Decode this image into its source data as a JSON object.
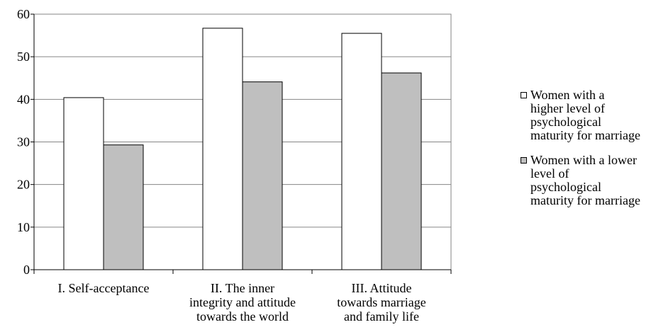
{
  "colors": {
    "series_0": "#ffffff",
    "series_1": "#bfbfbf",
    "axis": "#000000",
    "grid": "#868686"
  },
  "chart_data": {
    "type": "bar",
    "title": "",
    "xlabel": "",
    "ylabel": "",
    "categories": [
      [
        "I. Self-acceptance"
      ],
      [
        "II. The inner",
        "integrity and attitude",
        "towards the world"
      ],
      [
        "III. Attitude",
        "towards marriage",
        "and family life"
      ]
    ],
    "series": [
      {
        "name": "Women with a higher level of psychological maturity for marriage",
        "values": [
          40.4,
          56.7,
          55.5
        ]
      },
      {
        "name": "Women with a lower level of psychological maturity for marriage",
        "values": [
          29.3,
          44.1,
          46.2
        ]
      }
    ],
    "ylim": [
      0,
      60
    ],
    "yticks": [
      0,
      10,
      20,
      30,
      40,
      50,
      60
    ],
    "grid": true,
    "legend_position": "right",
    "legend": [
      [
        "Women with a",
        "higher level of",
        "psychological",
        "maturity for marriage"
      ],
      [
        "Women with a lower",
        "level of",
        "psychological",
        "maturity for marriage"
      ]
    ]
  }
}
